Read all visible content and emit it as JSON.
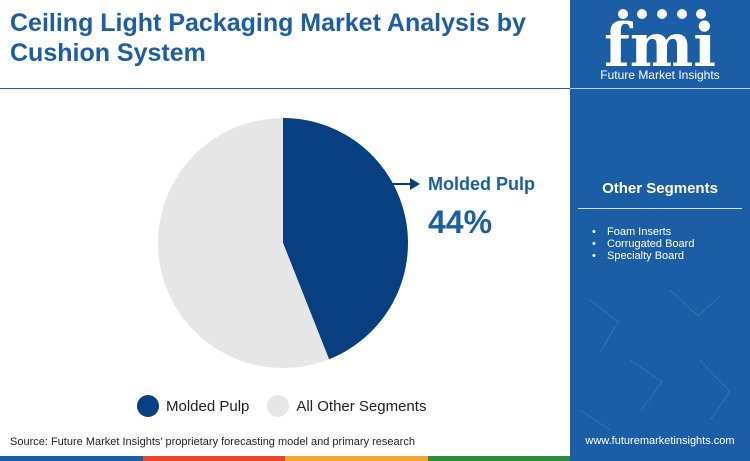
{
  "title": "Ceiling Light Packaging Market Analysis by Cushion System",
  "chart_data": {
    "type": "pie",
    "slices": [
      {
        "label": "Molded Pulp",
        "value": 44,
        "color": "#073f80"
      },
      {
        "label": "All Other Segments",
        "value": 56,
        "color": "#e6e6e6"
      }
    ],
    "callout": {
      "label": "Molded Pulp",
      "value": "44%"
    },
    "legend": [
      "Molded Pulp",
      "All Other Segments"
    ],
    "legend_placement": "bottom"
  },
  "source": "Source: Future Market Insights’ proprietary forecasting model and primary research",
  "side_panel": {
    "logo_letters": "fmi",
    "logo_name": "Future Market Insights",
    "heading": "Other Segments",
    "items": [
      "Foam Inserts",
      "Corrugated Board",
      "Specialty Board"
    ],
    "url": "www.futuremarketinsights.com"
  },
  "colors": {
    "brand_blue": "#1b5ea6",
    "dark_slice": "#073f80",
    "light_slice": "#e6e6e6",
    "accent_strip": [
      "#1b5ea6",
      "#e8452c",
      "#f2a33a",
      "#2e8b3e"
    ]
  }
}
